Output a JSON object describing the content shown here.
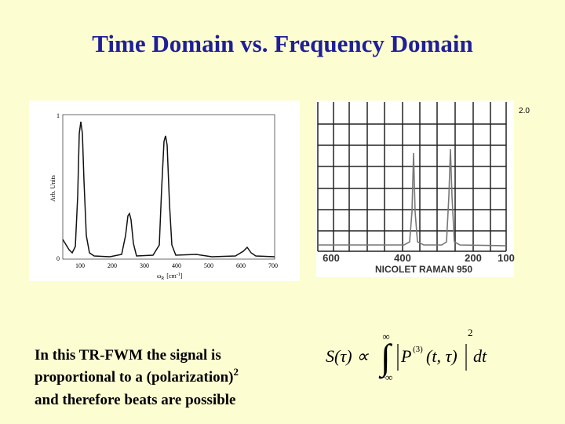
{
  "title": "Time Domain vs. Frequency Domain",
  "left_plot": {
    "y_label": "Arb. Units",
    "yticks": [
      "1",
      "0"
    ],
    "xticks": [
      "100",
      "200",
      "300",
      "400",
      "500",
      "600",
      "700"
    ],
    "x_label": "ω",
    "x_label_sub": "R",
    "x_label_unit": "[cm",
    "x_label_exp": "-1",
    "x_label_close": "]"
  },
  "right_plot": {
    "scale_label": "2.0",
    "xticks": [
      "600",
      "400",
      "200",
      "100"
    ],
    "caption": "NICOLET RAMAN 950"
  },
  "text": {
    "lines": [
      "In this TR-FWM the signal is",
      "proportional to a (polarization)",
      "and therefore beats are possible"
    ],
    "superscript": "2"
  },
  "equation": {
    "lhs": "S(τ) ∝",
    "integral": "∫",
    "upper": "∞",
    "lower": "−∞",
    "function": "P",
    "order": "(3)",
    "args": "(t, τ)",
    "power": "2",
    "differential": "dt"
  }
}
